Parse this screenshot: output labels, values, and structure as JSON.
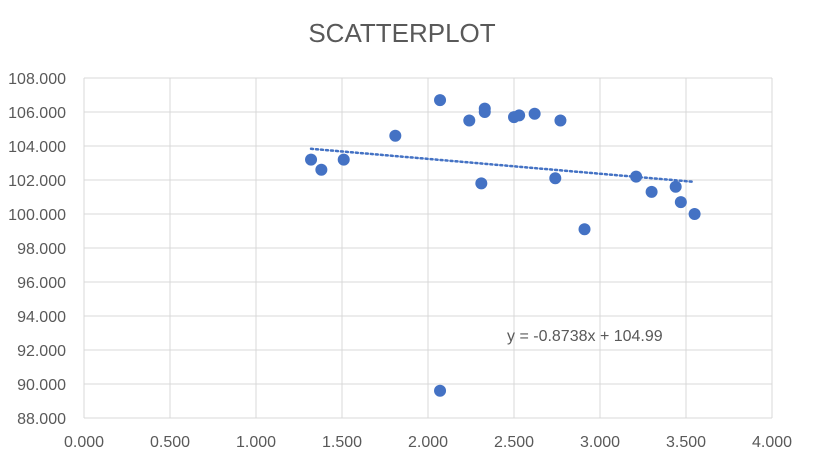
{
  "chart_data": {
    "type": "scatter",
    "title": "SCATTERPLOT",
    "xlabel": "",
    "ylabel": "",
    "xlim": [
      0,
      4
    ],
    "ylim": [
      88,
      108
    ],
    "x_ticks": [
      "0.000",
      "0.500",
      "1.000",
      "1.500",
      "2.000",
      "2.500",
      "3.000",
      "3.500",
      "4.000"
    ],
    "y_ticks": [
      "88.000",
      "90.000",
      "92.000",
      "94.000",
      "96.000",
      "98.000",
      "100.000",
      "102.000",
      "104.000",
      "106.000",
      "108.000"
    ],
    "grid": true,
    "point_color": "#4472c4",
    "trendline_color": "#4472c4",
    "series": [
      {
        "points": [
          [
            1.32,
            103.2
          ],
          [
            1.38,
            102.6
          ],
          [
            1.51,
            103.2
          ],
          [
            1.81,
            104.6
          ],
          [
            2.07,
            106.7
          ],
          [
            2.07,
            89.6
          ],
          [
            2.24,
            105.5
          ],
          [
            2.31,
            101.8
          ],
          [
            2.33,
            106.2
          ],
          [
            2.33,
            106.0
          ],
          [
            2.5,
            105.7
          ],
          [
            2.53,
            105.8
          ],
          [
            2.62,
            105.9
          ],
          [
            2.74,
            102.1
          ],
          [
            2.77,
            105.5
          ],
          [
            2.91,
            99.1
          ],
          [
            3.21,
            102.2
          ],
          [
            3.3,
            101.3
          ],
          [
            3.44,
            101.6
          ],
          [
            3.47,
            100.7
          ],
          [
            3.55,
            100.0
          ]
        ]
      }
    ],
    "trendline": {
      "equation_label": "y = -0.8738x + 104.99",
      "slope": -0.8738,
      "intercept": 104.99,
      "x_range": [
        1.32,
        3.55
      ]
    }
  }
}
